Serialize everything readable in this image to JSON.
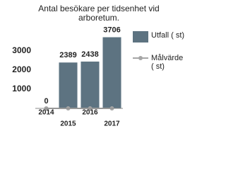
{
  "chart_data": {
    "type": "bar",
    "title": "Antal besökare per tidsenhet vid arboretum.",
    "categories": [
      "2014",
      "2015",
      "2016",
      "2017"
    ],
    "series": [
      {
        "name": "Utfall ( st)",
        "color": "#5d7381",
        "values": [
          0,
          2389,
          2438,
          3706
        ]
      },
      {
        "name": "Målvärde ( st)",
        "color": "#a6a6a6",
        "type": "line",
        "values": [
          0,
          0,
          0,
          0
        ]
      }
    ],
    "ylim": [
      0,
      3800
    ],
    "yticks": [
      1000,
      2000,
      3000
    ],
    "grid": false
  }
}
